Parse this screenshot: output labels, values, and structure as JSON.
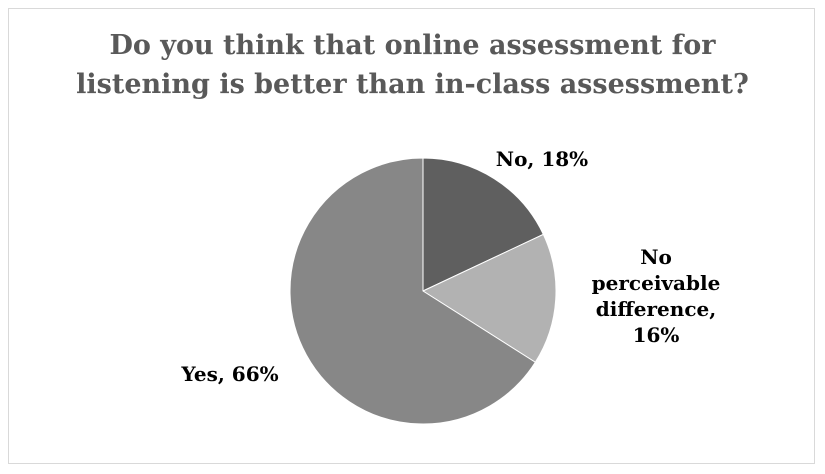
{
  "chart_data": {
    "type": "pie",
    "title_lines": [
      "Do you think that online assessment for",
      "listening is better than in-class assessment?"
    ],
    "categories": [
      "No",
      "No perceivable difference",
      "Yes"
    ],
    "values": [
      18,
      16,
      66
    ],
    "unit": "%",
    "labels": [
      {
        "lines": [
          "No, 18%"
        ]
      },
      {
        "lines": [
          "No",
          "perceivable",
          "difference,",
          "16%"
        ]
      },
      {
        "lines": [
          "Yes, 66%"
        ]
      }
    ],
    "colors": [
      "#5f5f5f",
      "#b2b2b2",
      "#878787"
    ],
    "legend": "none"
  }
}
